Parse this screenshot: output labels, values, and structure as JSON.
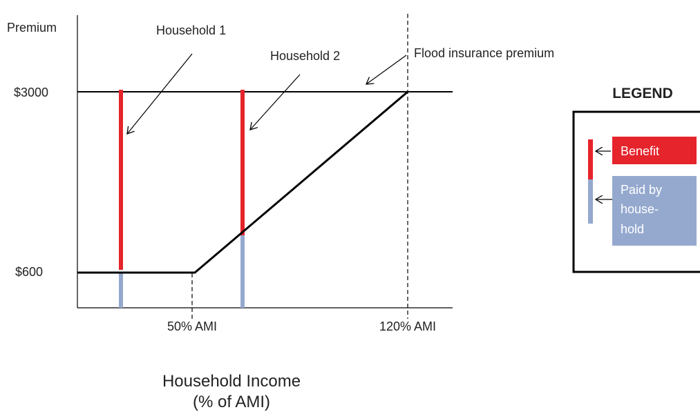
{
  "y_axis": {
    "label": "Premium",
    "ticks": [
      "$3000",
      "$600"
    ]
  },
  "x_axis": {
    "ticks": [
      "50% AMI",
      "120% AMI"
    ],
    "title_line1": "Household Income",
    "title_line2": "(% of AMI)"
  },
  "annotations": {
    "household1": "Household 1",
    "household2": "Household 2",
    "premium_line": "Flood insurance premium"
  },
  "legend": {
    "title": "LEGEND",
    "benefit_label": "Benefit",
    "paid_line1": "Paid by",
    "paid_line2": "house-",
    "paid_line3": "hold"
  },
  "colors": {
    "benefit": "#e5242b",
    "paid_by_household": "#95a9cf",
    "line": "#000000"
  }
}
